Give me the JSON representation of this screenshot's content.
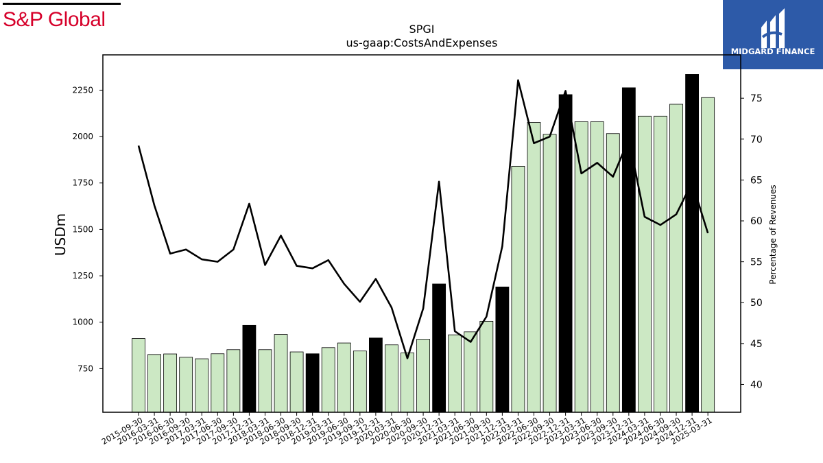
{
  "branding": {
    "left_logo_text": "S&P Global",
    "right_logo_text": "MIDGARD FINANCE"
  },
  "chart_data": {
    "type": "bar",
    "title": "SPGI",
    "subtitle": "us-gaap:CostsAndExpenses",
    "ylabel": "USDm",
    "y2label": "Percentage of Revenues",
    "ylim": [
      515,
      2440
    ],
    "y2lim": [
      36.6,
      80.3
    ],
    "yticks": [
      750,
      1000,
      1250,
      1500,
      1750,
      2000,
      2250
    ],
    "y2ticks": [
      40,
      45,
      50,
      55,
      60,
      65,
      70,
      75
    ],
    "grid": false,
    "colors": {
      "quarter_bar": "#cce8c4",
      "annual_bar": "#000000",
      "bar_edge": "#000000",
      "line": "#000000"
    },
    "categories": [
      "2015-09-30",
      "2016-03-31",
      "2016-06-30",
      "2016-09-30",
      "2017-03-31",
      "2017-06-30",
      "2017-09-30",
      "2017-12-31",
      "2018-03-31",
      "2018-06-30",
      "2018-09-30",
      "2018-12-31",
      "2019-03-31",
      "2019-06-30",
      "2019-09-30",
      "2019-12-31",
      "2020-03-31",
      "2020-06-30",
      "2020-09-30",
      "2020-12-31",
      "2021-03-31",
      "2021-06-30",
      "2021-09-30",
      "2021-12-31",
      "2022-03-31",
      "2022-06-30",
      "2022-09-30",
      "2022-12-31",
      "2023-03-31",
      "2023-06-30",
      "2023-09-30",
      "2023-12-31",
      "2024-03-31",
      "2024-06-30",
      "2024-09-30",
      "2024-12-31",
      "2025-03-31"
    ],
    "series": [
      {
        "kind": "bar",
        "values": [
          912,
          826,
          829,
          811,
          803,
          830,
          852,
          983,
          852,
          934,
          840,
          830,
          863,
          888,
          845,
          915,
          878,
          835,
          908,
          1206,
          932,
          948,
          1005,
          1190,
          1840,
          2076,
          2012,
          2226,
          2080,
          2080,
          2016,
          2263,
          2110,
          2110,
          2174,
          2335,
          2210
        ],
        "annual": [
          false,
          false,
          false,
          false,
          false,
          false,
          false,
          true,
          false,
          false,
          false,
          true,
          false,
          false,
          false,
          true,
          false,
          false,
          false,
          true,
          false,
          false,
          false,
          true,
          false,
          false,
          false,
          true,
          false,
          false,
          false,
          true,
          false,
          false,
          false,
          true,
          false
        ]
      },
      {
        "kind": "line",
        "axis": "right",
        "values": [
          69.2,
          61.9,
          56.0,
          56.5,
          55.3,
          55.0,
          56.5,
          62.1,
          54.6,
          58.2,
          54.5,
          54.2,
          55.2,
          52.3,
          50.1,
          52.9,
          49.4,
          43.2,
          49.3,
          64.8,
          46.5,
          45.2,
          48.3,
          56.9,
          77.2,
          69.5,
          70.3,
          75.9,
          65.8,
          67.1,
          65.4,
          70.0,
          60.5,
          59.5,
          60.8,
          64.7,
          58.5
        ]
      }
    ]
  }
}
